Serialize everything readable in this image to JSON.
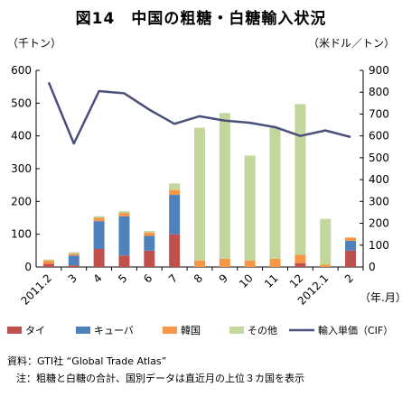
{
  "chart_data": {
    "type": "bar",
    "title": "図14　中国の粗糖・白糖輸入状況",
    "y_left_unit": "（千トン）",
    "y_right_unit": "（米ドル／トン）",
    "x_unit": "（年.月）",
    "y_left_range": [
      0,
      600
    ],
    "y_left_ticks": [
      "0",
      "100",
      "200",
      "300",
      "400",
      "500",
      "600"
    ],
    "y_right_range": [
      0,
      900
    ],
    "y_right_ticks": [
      "0",
      "100",
      "200",
      "300",
      "400",
      "500",
      "600",
      "700",
      "800",
      "900"
    ],
    "categories": [
      "2011.2",
      "3",
      "4",
      "5",
      "6",
      "7",
      "8",
      "9",
      "10",
      "11",
      "12",
      "2012.1",
      "2"
    ],
    "grid": false,
    "legend_position": "bottom",
    "series": [
      {
        "name": "タイ",
        "color": "#c0504d",
        "axis": "left",
        "values": [
          10,
          5,
          55,
          35,
          50,
          100,
          0,
          0,
          0,
          0,
          12,
          0,
          50
        ]
      },
      {
        "name": "キューバ",
        "color": "#4f81bd",
        "axis": "left",
        "values": [
          0,
          30,
          85,
          120,
          45,
          120,
          0,
          0,
          0,
          0,
          0,
          0,
          30
        ]
      },
      {
        "name": "韓国",
        "color": "#f79646",
        "axis": "left",
        "values": [
          10,
          5,
          10,
          10,
          10,
          15,
          20,
          25,
          20,
          25,
          25,
          7,
          10
        ]
      },
      {
        "name": "その他",
        "color": "#c3d69b",
        "axis": "left",
        "values": [
          3,
          5,
          5,
          5,
          5,
          20,
          405,
          445,
          320,
          400,
          460,
          140,
          0
        ]
      },
      {
        "name": "輸入単価（CIF）",
        "color": "#4b4f7c",
        "axis": "right",
        "kind": "line",
        "values": [
          845,
          565,
          805,
          795,
          720,
          655,
          690,
          670,
          660,
          640,
          600,
          625,
          595
        ]
      }
    ],
    "source_note": "資料：GTI社 “Global Trade Atlas”",
    "footnote": "注：粗糖と白糖の合計、国別データは直近月の上位３カ国を表示"
  }
}
